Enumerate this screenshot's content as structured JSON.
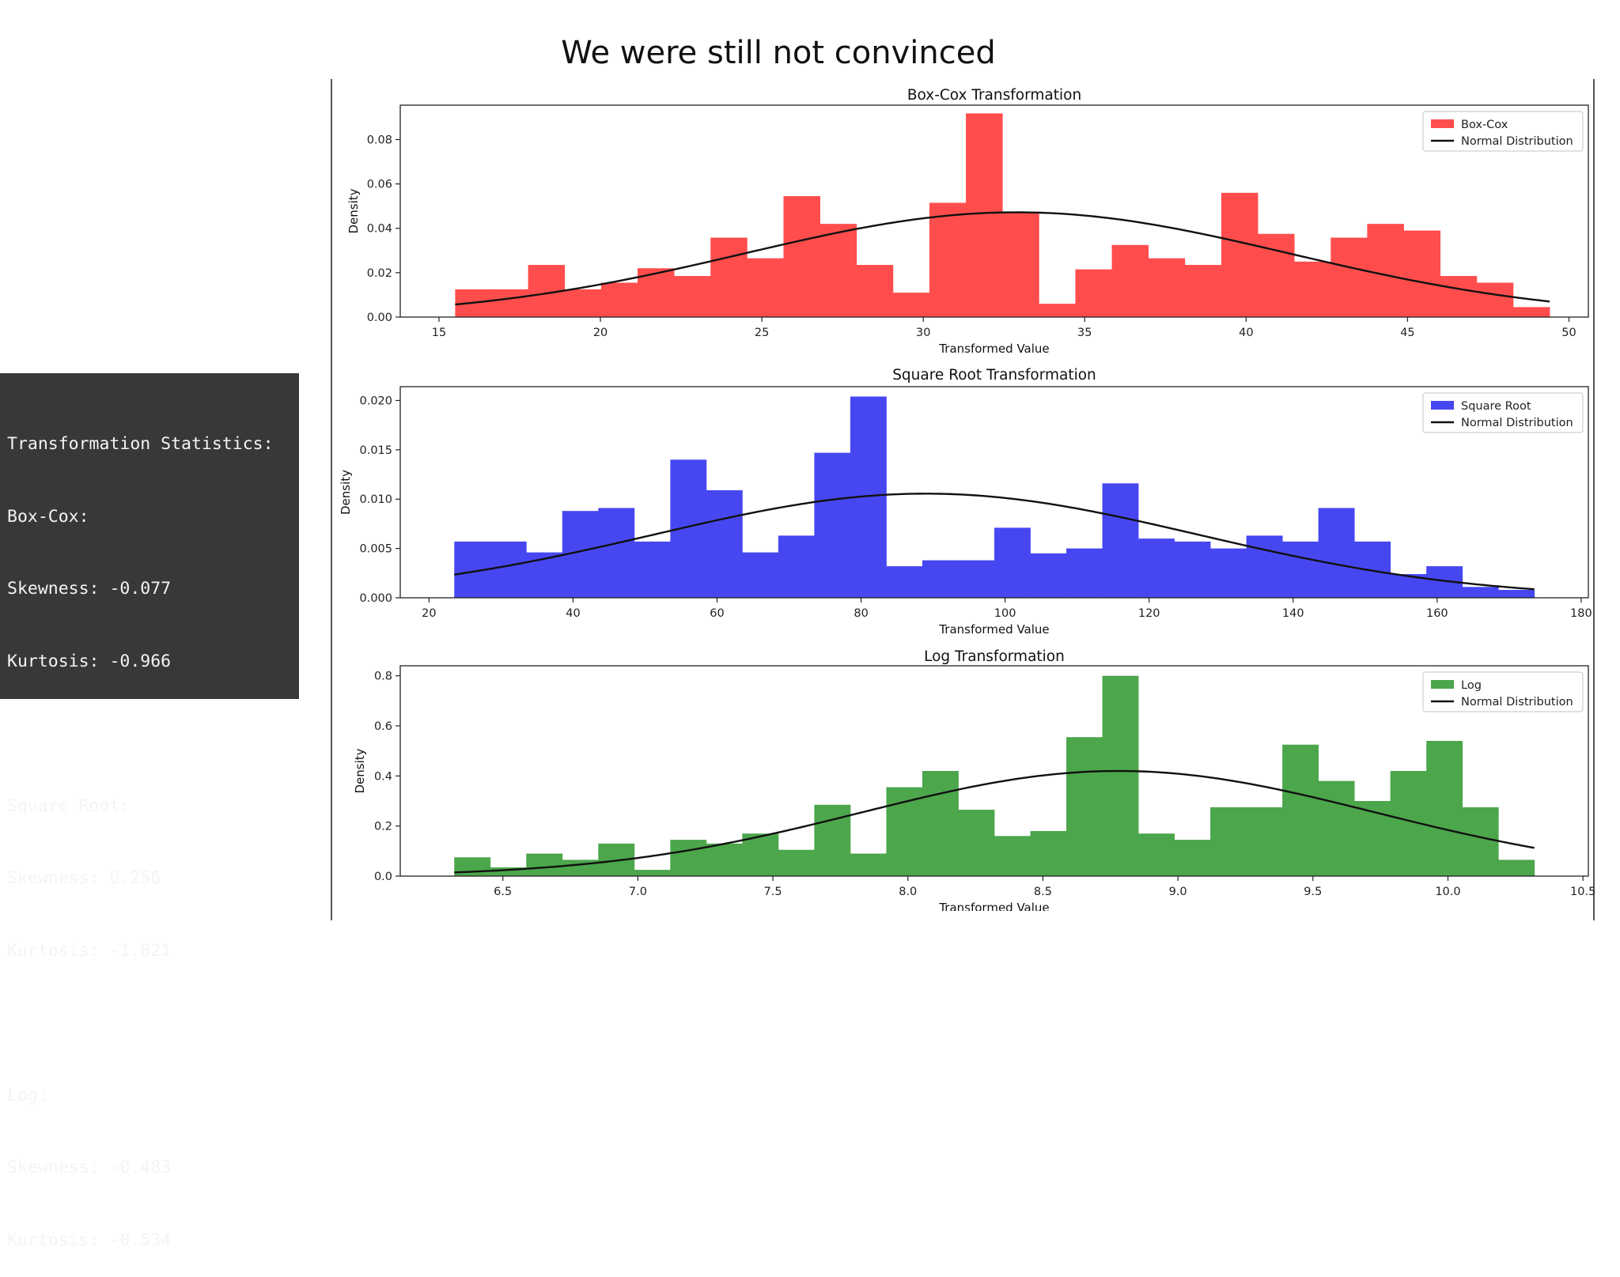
{
  "slide": {
    "title": "We were still not convinced"
  },
  "stats": {
    "heading": "Transformation Statistics:",
    "blocks": [
      {
        "label": "Box-Cox:",
        "skew": "Skewness: -0.077",
        "kurt": "Kurtosis: -0.966"
      },
      {
        "label": "Square Root:",
        "skew": "Skewness: 0.256",
        "kurt": "Kurtosis: -1.021"
      },
      {
        "label": "Log:",
        "skew": "Skewness: -0.483",
        "kurt": "Kurtosis: -0.534"
      }
    ]
  },
  "chart_data": [
    {
      "type": "bar",
      "title": "Box-Cox Transformation",
      "xlabel": "Transformed Value",
      "ylabel": "Density",
      "xlim": [
        13.8,
        50.6
      ],
      "ylim": [
        0,
        0.0955
      ],
      "xticks": [
        15,
        20,
        25,
        30,
        35,
        40,
        45,
        50
      ],
      "yticks": [
        0.0,
        0.02,
        0.04,
        0.06,
        0.08
      ],
      "ytick_decimals": 2,
      "grid": false,
      "legend_position": "top-right",
      "color": "#ff4d4d",
      "bin_edges": [
        15.5,
        16.63,
        17.76,
        18.89,
        20.02,
        21.15,
        22.28,
        23.41,
        24.54,
        25.67,
        26.8,
        27.93,
        29.06,
        30.19,
        31.32,
        32.45,
        33.58,
        34.71,
        35.84,
        36.97,
        38.1,
        39.23,
        40.36,
        41.49,
        42.62,
        43.75,
        44.88,
        46.01,
        47.14,
        48.27,
        49.4
      ],
      "values": [
        0.0125,
        0.0125,
        0.0235,
        0.0125,
        0.0155,
        0.022,
        0.0185,
        0.0358,
        0.0265,
        0.0545,
        0.042,
        0.0235,
        0.011,
        0.0515,
        0.0918,
        0.0475,
        0.006,
        0.0215,
        0.0325,
        0.0265,
        0.0235,
        0.056,
        0.0375,
        0.025,
        0.0358,
        0.042,
        0.039,
        0.0185,
        0.0155,
        0.0045
      ],
      "curve": {
        "mean": 32.9,
        "sd": 8.45
      },
      "series": [
        {
          "name": "Box-Cox"
        },
        {
          "name": "Normal Distribution"
        }
      ]
    },
    {
      "type": "bar",
      "title": "Square Root Transformation",
      "xlabel": "Transformed Value",
      "ylabel": "Density",
      "xlim": [
        16,
        181
      ],
      "ylim": [
        0,
        0.0214
      ],
      "xticks": [
        20,
        40,
        60,
        80,
        100,
        120,
        140,
        160,
        180
      ],
      "yticks": [
        0.0,
        0.005,
        0.01,
        0.015,
        0.02
      ],
      "ytick_decimals": 3,
      "grid": false,
      "legend_position": "top-right",
      "color": "#4747f2",
      "bin_edges": [
        23.5,
        28.5,
        33.5,
        38.5,
        43.5,
        48.5,
        53.5,
        58.5,
        63.5,
        68.5,
        73.5,
        78.5,
        83.5,
        88.5,
        93.5,
        98.5,
        103.5,
        108.5,
        113.5,
        118.5,
        123.5,
        128.5,
        133.5,
        138.5,
        143.5,
        148.5,
        153.5,
        158.5,
        163.5,
        168.5,
        173.5
      ],
      "values": [
        0.0057,
        0.0057,
        0.0046,
        0.0088,
        0.0091,
        0.0057,
        0.014,
        0.0109,
        0.0046,
        0.0063,
        0.0147,
        0.0204,
        0.0032,
        0.0038,
        0.0038,
        0.0071,
        0.0045,
        0.005,
        0.0116,
        0.006,
        0.0057,
        0.005,
        0.0063,
        0.0057,
        0.0091,
        0.0057,
        0.0024,
        0.0032,
        0.0011,
        0.0008
      ],
      "curve": {
        "mean": 89,
        "sd": 37.8
      },
      "series": [
        {
          "name": "Square Root"
        },
        {
          "name": "Normal Distribution"
        }
      ]
    },
    {
      "type": "bar",
      "title": "Log Transformation",
      "xlabel": "Transformed Value",
      "ylabel": "Density",
      "xlim": [
        6.12,
        10.52
      ],
      "ylim": [
        0,
        0.84
      ],
      "xticks": [
        6.5,
        7.0,
        7.5,
        8.0,
        8.5,
        9.0,
        9.5,
        10.0,
        10.5
      ],
      "yticks": [
        0.0,
        0.2,
        0.4,
        0.6,
        0.8
      ],
      "ytick_decimals": 1,
      "grid": false,
      "legend_position": "top-right",
      "color": "#4ca64c",
      "bin_edges": [
        6.32,
        6.4533,
        6.5867,
        6.72,
        6.8533,
        6.9867,
        7.12,
        7.2533,
        7.3867,
        7.52,
        7.6533,
        7.7867,
        7.92,
        8.0533,
        8.1867,
        8.32,
        8.4533,
        8.5867,
        8.72,
        8.8533,
        8.9867,
        9.12,
        9.2533,
        9.3867,
        9.52,
        9.6533,
        9.7867,
        9.92,
        10.0533,
        10.1867,
        10.32
      ],
      "values": [
        0.075,
        0.035,
        0.09,
        0.065,
        0.13,
        0.025,
        0.145,
        0.13,
        0.17,
        0.105,
        0.285,
        0.09,
        0.355,
        0.42,
        0.265,
        0.16,
        0.18,
        0.555,
        0.8,
        0.17,
        0.145,
        0.275,
        0.275,
        0.525,
        0.38,
        0.3,
        0.42,
        0.54,
        0.275,
        0.065
      ],
      "curve": {
        "mean": 8.78,
        "sd": 0.95
      },
      "series": [
        {
          "name": "Log"
        },
        {
          "name": "Normal Distribution"
        }
      ]
    }
  ]
}
